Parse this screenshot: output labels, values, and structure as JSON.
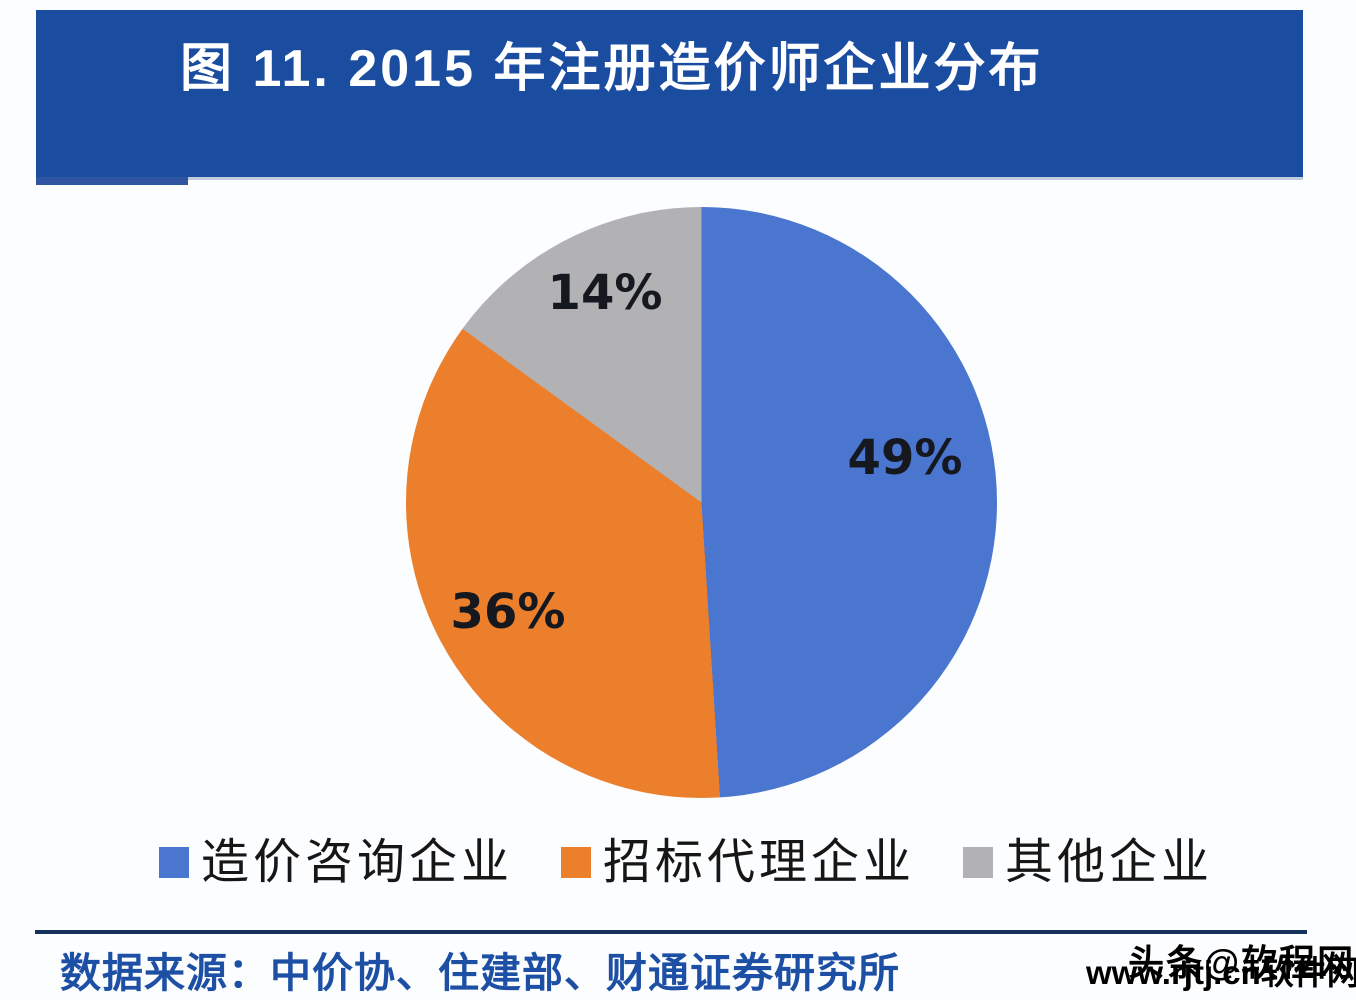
{
  "header": {
    "title": "图 11. 2015 年注册造价师企业分布",
    "background": "#1a4ca0",
    "text_color": "#ffffff"
  },
  "chart_data": {
    "type": "pie",
    "title": "图 11. 2015 年注册造价师企业分布",
    "series": [
      {
        "name": "造价咨询企业",
        "value": 49,
        "label": "49%",
        "color": "#4a76cf"
      },
      {
        "name": "招标代理企业",
        "value": 36,
        "label": "36%",
        "color": "#ec7f2c"
      },
      {
        "name": "其他企业",
        "value": 14,
        "label": "14%",
        "color": "#b2b2b5"
      }
    ],
    "start_angle_deg": 0,
    "direction": "clockwise",
    "legend_position": "bottom",
    "data_label_format": "percent",
    "label_color": "#15181f"
  },
  "source": {
    "text": "数据来源：中价协、住建部、财通证券研究所",
    "color": "#1d50a5",
    "rule_color": "#16325c"
  },
  "watermark": {
    "layers": [
      {
        "text": "头条@软程网"
      },
      {
        "text": "www.rjtj.cn软件网"
      }
    ]
  }
}
